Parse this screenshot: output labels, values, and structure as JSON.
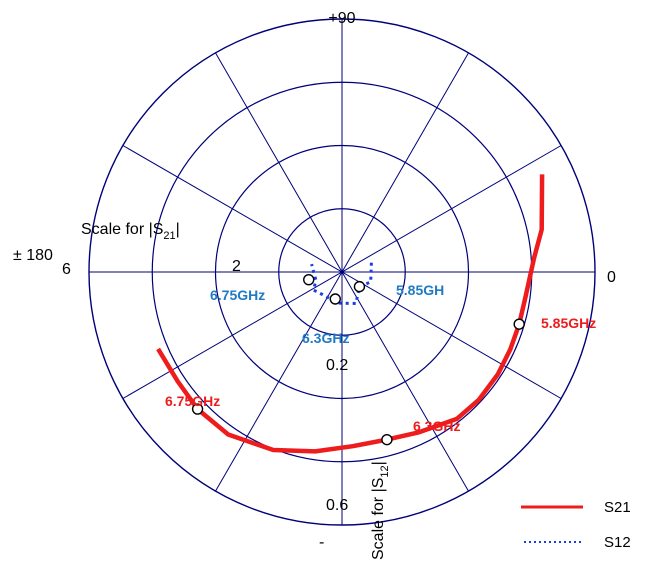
{
  "chart_data": {
    "type": "polar",
    "angle_labels": {
      "top": "+90",
      "right": "0",
      "left": "± 180"
    },
    "scale_s21": {
      "title": "Scale for |S21|",
      "ticks": [
        "6",
        "2"
      ]
    },
    "scale_s12": {
      "title": "Scale for |S12|",
      "ticks": [
        "0.2",
        "0.6",
        "-"
      ]
    },
    "legend": [
      {
        "name": "S21",
        "color": "#ee1c1c",
        "style": "solid"
      },
      {
        "name": "S12",
        "color": "#1a3ee6",
        "style": "dotted"
      }
    ],
    "annotations": {
      "s21_start": "5.85GHz",
      "s21_mid": "6.3GHz",
      "s21_end": "6.75GHz",
      "s12_start": "5.85GH",
      "s12_mid": "6.3GHz",
      "s12_end": "6.75GHz"
    },
    "series": [
      {
        "name": "S21",
        "color": "#ee1c1c",
        "points": [
          {
            "angle_deg": 26.0,
            "r": 0.88
          },
          {
            "angle_deg": 12.0,
            "r": 0.807
          },
          {
            "angle_deg": 4.3,
            "r": 0.762
          },
          {
            "angle_deg": -7.6,
            "r": 0.732
          },
          {
            "angle_deg": -16.4,
            "r": 0.73
          },
          {
            "angle_deg": -24.7,
            "r": 0.732
          },
          {
            "angle_deg": -33.3,
            "r": 0.737
          },
          {
            "angle_deg": -43.0,
            "r": 0.74
          },
          {
            "angle_deg": -52.0,
            "r": 0.737
          },
          {
            "angle_deg": -64.7,
            "r": 0.702
          },
          {
            "angle_deg": -75.0,
            "r": 0.686
          },
          {
            "angle_deg": -86.5,
            "r": 0.69
          },
          {
            "angle_deg": -98.5,
            "r": 0.717
          },
          {
            "angle_deg": -111.1,
            "r": 0.754
          },
          {
            "angle_deg": -125.0,
            "r": 0.784
          },
          {
            "angle_deg": -136.5,
            "r": 0.787
          },
          {
            "angle_deg": -146.3,
            "r": 0.78
          },
          {
            "angle_deg": -157.3,
            "r": 0.788
          }
        ]
      },
      {
        "name": "S12",
        "color": "#1a3ee6",
        "points": [
          {
            "angle_deg": 17.5,
            "r": 0.122
          },
          {
            "angle_deg": -19.2,
            "r": 0.12
          },
          {
            "angle_deg": -40.0,
            "r": 0.09
          },
          {
            "angle_deg": -66.2,
            "r": 0.136
          },
          {
            "angle_deg": -97.0,
            "r": 0.124
          },
          {
            "angle_deg": -131.0,
            "r": 0.118
          },
          {
            "angle_deg": -147.5,
            "r": 0.133
          },
          {
            "angle_deg": -162.6,
            "r": 0.108
          },
          {
            "angle_deg": 165.4,
            "r": 0.124
          }
        ]
      }
    ],
    "markers": [
      {
        "series": "S21",
        "angle_deg": -16.4,
        "r": 0.73
      },
      {
        "series": "S21",
        "angle_deg": -75.0,
        "r": 0.686
      },
      {
        "series": "S21",
        "angle_deg": -136.5,
        "r": 0.787
      },
      {
        "series": "S12",
        "angle_deg": -40.0,
        "r": 0.09
      },
      {
        "series": "S12",
        "angle_deg": -104.0,
        "r": 0.11
      },
      {
        "series": "S12",
        "angle_deg": -167.0,
        "r": 0.135
      }
    ]
  }
}
